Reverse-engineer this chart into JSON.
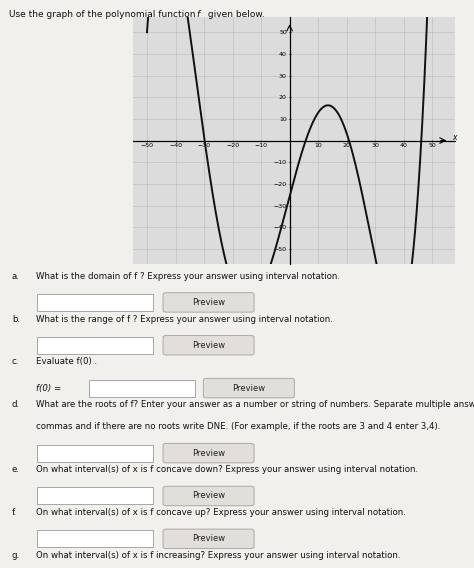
{
  "title": "Use the graph of the polynomial function f  given below.",
  "graph_xlim": [
    -55,
    58
  ],
  "graph_ylim": [
    -57,
    57
  ],
  "xticks": [
    -50,
    -40,
    -30,
    -20,
    -10,
    10,
    20,
    30,
    40,
    50
  ],
  "yticks": [
    -50,
    -40,
    -30,
    -20,
    -10,
    10,
    20,
    30,
    40,
    50
  ],
  "xlabel": "x",
  "bg_color": "#f2f0ed",
  "grid_color": "#bbbbbb",
  "curve_color": "#111111",
  "graph_bg": "#dcdcdc",
  "curve_points_x": [
    -50,
    -35,
    -5,
    8,
    25,
    48
  ],
  "curve_points_y": [
    50,
    50,
    -50,
    8,
    -22,
    50
  ]
}
